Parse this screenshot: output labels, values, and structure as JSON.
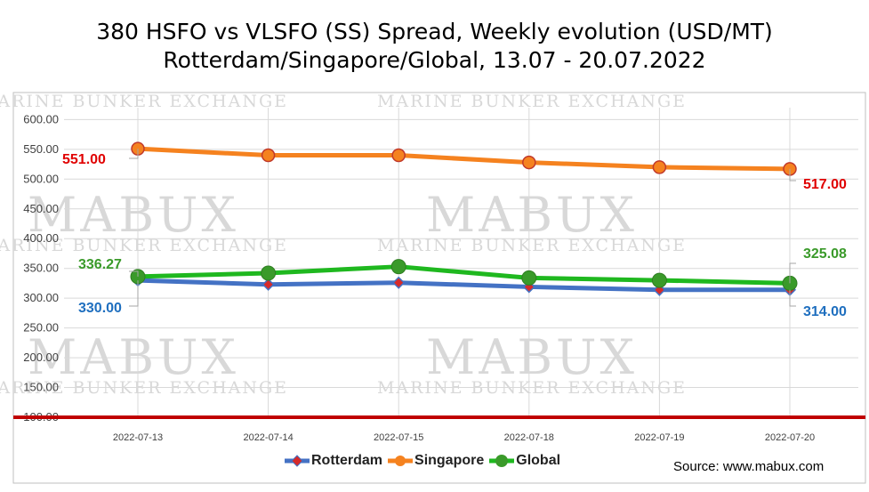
{
  "chart_data": {
    "type": "line",
    "title": "380 HSFO vs VLSFO (SS) Spread, Weekly evolution (USD/MT)",
    "subtitle": "Rotterdam/Singapore/Global, 13.07 - 20.07.2022",
    "categories": [
      "2022-07-13",
      "2022-07-14",
      "2022-07-15",
      "2022-07-18",
      "2022-07-19",
      "2022-07-20"
    ],
    "y_ticks": [
      "100.00",
      "150.00",
      "200.00",
      "250.00",
      "300.00",
      "350.00",
      "400.00",
      "450.00",
      "500.00",
      "550.00",
      "600.00"
    ],
    "ylim": [
      100,
      620
    ],
    "grid": true,
    "legend_position": "bottom",
    "series": [
      {
        "name": "Rotterdam",
        "values": [
          330.0,
          323,
          326,
          319,
          314,
          314.0
        ],
        "color": "#4472c4",
        "marker": "diamond",
        "marker_color": "#d62a2a"
      },
      {
        "name": "Singapore",
        "values": [
          551.0,
          540,
          540,
          528,
          520,
          517.0
        ],
        "color": "#f5821f",
        "marker": "circle",
        "marker_color": "#f5821f"
      },
      {
        "name": "Global",
        "values": [
          336.27,
          342,
          353,
          334,
          330,
          325.08
        ],
        "color": "#1fb81f",
        "marker": "circle",
        "marker_color": "#3a9a2a"
      }
    ],
    "baseline": {
      "value": 100,
      "color": "#c00000"
    },
    "data_labels": [
      {
        "series": "Singapore",
        "index": 0,
        "text": "551.00",
        "color": "#e00000"
      },
      {
        "series": "Singapore",
        "index": 5,
        "text": "517.00",
        "color": "#e00000"
      },
      {
        "series": "Global",
        "index": 0,
        "text": "336.27",
        "color": "#3a9a2a"
      },
      {
        "series": "Global",
        "index": 5,
        "text": "325.08",
        "color": "#3a9a2a"
      },
      {
        "series": "Rotterdam",
        "index": 0,
        "text": "330.00",
        "color": "#1f6fbf"
      },
      {
        "series": "Rotterdam",
        "index": 5,
        "text": "314.00",
        "color": "#1f6fbf"
      }
    ]
  },
  "watermark": {
    "big": "MABUX",
    "small": "MARINE BUNKER EXCHANGE"
  },
  "source": "Source: www.mabux.com"
}
